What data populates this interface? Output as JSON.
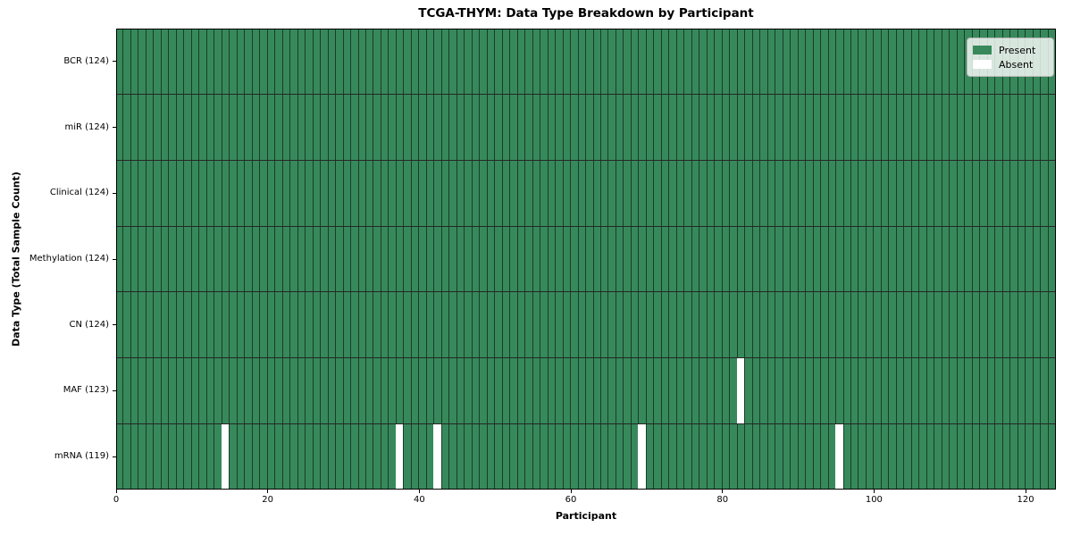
{
  "chart_data": {
    "type": "heatmap",
    "title": "TCGA-THYM: Data Type Breakdown by Participant",
    "xlabel": "Participant",
    "ylabel": "Data Type (Total Sample Count)",
    "x_ticks": [
      0,
      20,
      40,
      60,
      80,
      100,
      120
    ],
    "x_range": [
      0,
      124
    ],
    "n_participants": 124,
    "rows": [
      {
        "name": "BCR",
        "label": "BCR (124)",
        "total_present": 124,
        "absent_participants": []
      },
      {
        "name": "miR",
        "label": "miR (124)",
        "total_present": 124,
        "absent_participants": []
      },
      {
        "name": "Clinical",
        "label": "Clinical (124)",
        "total_present": 124,
        "absent_participants": []
      },
      {
        "name": "Methylation",
        "label": "Methylation (124)",
        "total_present": 124,
        "absent_participants": []
      },
      {
        "name": "CN",
        "label": "CN (124)",
        "total_present": 124,
        "absent_participants": []
      },
      {
        "name": "MAF",
        "label": "MAF (123)",
        "total_present": 123,
        "absent_participants": [
          82
        ]
      },
      {
        "name": "mRNA",
        "label": "mRNA (119)",
        "total_present": 119,
        "absent_participants": [
          14,
          37,
          42,
          69,
          95
        ]
      }
    ],
    "legend": {
      "position": "upper-right",
      "entries": [
        {
          "name": "present",
          "label": "Present",
          "color": "#37895b"
        },
        {
          "name": "absent",
          "label": "Absent",
          "color": "#ffffff"
        }
      ]
    },
    "colors": {
      "present": "#37895b",
      "absent": "#ffffff",
      "cell_border": "#1d4530",
      "row_divider": "#000000",
      "axes_frame": "#000000"
    }
  }
}
